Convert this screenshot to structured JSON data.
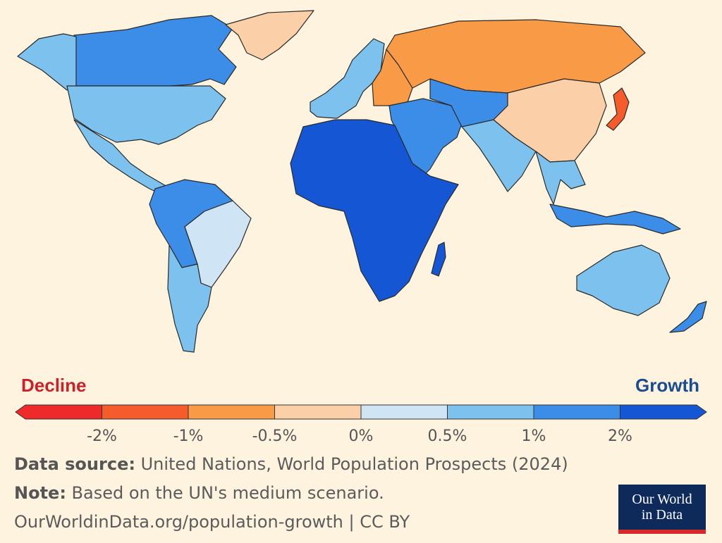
{
  "legend": {
    "left_label": "Decline",
    "right_label": "Growth",
    "left_color": "#c8222a",
    "right_color": "#1b4c8f",
    "bins": [
      {
        "from": null,
        "to": -2,
        "color": "#ee2a2a"
      },
      {
        "from": -2,
        "to": -1,
        "color": "#f65b2c"
      },
      {
        "from": -1,
        "to": -0.5,
        "color": "#f99a47"
      },
      {
        "from": -0.5,
        "to": 0,
        "color": "#fbd0a8"
      },
      {
        "from": 0,
        "to": 0.5,
        "color": "#cfe5f6"
      },
      {
        "from": 0.5,
        "to": 1,
        "color": "#7dc1ee"
      },
      {
        "from": 1,
        "to": 2,
        "color": "#3b8de8"
      },
      {
        "from": 2,
        "to": null,
        "color": "#1556d4"
      }
    ],
    "ticks": [
      "-2%",
      "-1%",
      "-0.5%",
      "0%",
      "0.5%",
      "1%",
      "2%"
    ]
  },
  "regions": [
    {
      "name": "North America North",
      "bin": 6
    },
    {
      "name": "Alaska",
      "bin": 5
    },
    {
      "name": "Greenland",
      "bin": 3
    },
    {
      "name": "United States",
      "bin": 5
    },
    {
      "name": "Mexico & Central America",
      "bin": 5
    },
    {
      "name": "South America North",
      "bin": 6
    },
    {
      "name": "Brazil",
      "bin": 4
    },
    {
      "name": "Southern Cone",
      "bin": 5
    },
    {
      "name": "Western Europe",
      "bin": 5
    },
    {
      "name": "Eastern Europe",
      "bin": 2
    },
    {
      "name": "Russia",
      "bin": 2
    },
    {
      "name": "Middle East",
      "bin": 6
    },
    {
      "name": "Africa",
      "bin": 7
    },
    {
      "name": "Madagascar",
      "bin": 7
    },
    {
      "name": "Central Asia",
      "bin": 6
    },
    {
      "name": "India",
      "bin": 5
    },
    {
      "name": "China",
      "bin": 3
    },
    {
      "name": "Japan",
      "bin": 1
    },
    {
      "name": "Southeast Asia",
      "bin": 5
    },
    {
      "name": "Indonesia",
      "bin": 6
    },
    {
      "name": "Australia",
      "bin": 5
    },
    {
      "name": "New Zealand",
      "bin": 6
    }
  ],
  "footer": {
    "source_label": "Data source:",
    "source_text": " United Nations, World Population Prospects (2024)",
    "note_label": "Note:",
    "note_text": " Based on the UN's medium scenario.",
    "url": "OurWorldinData.org/population-growth | CC BY"
  },
  "logo": {
    "line1": "Our World",
    "line2": "in Data"
  }
}
